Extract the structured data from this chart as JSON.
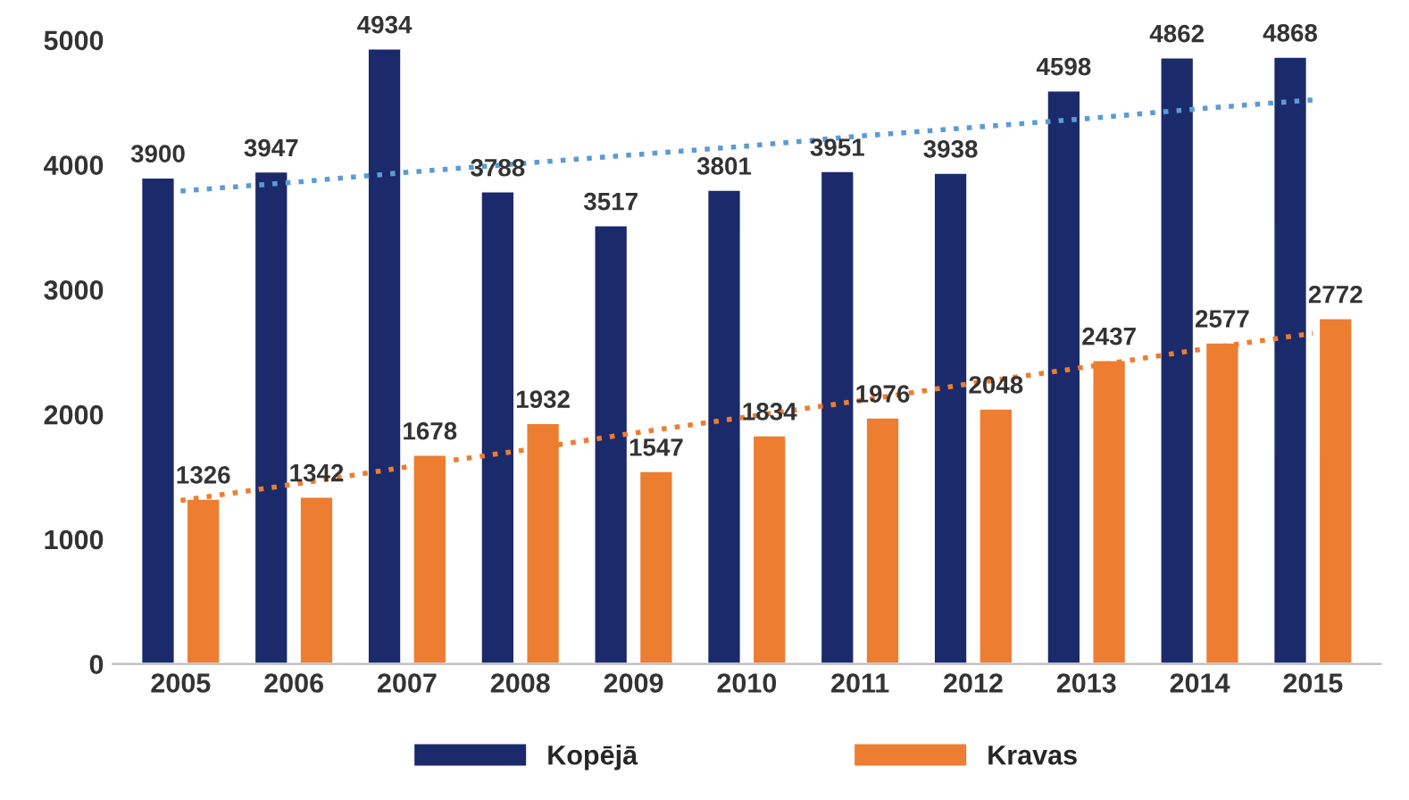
{
  "chart_data": {
    "type": "bar",
    "categories": [
      "2005",
      "2006",
      "2007",
      "2008",
      "2009",
      "2010",
      "2011",
      "2012",
      "2013",
      "2014",
      "2015"
    ],
    "series": [
      {
        "name": "Kopējā",
        "color": "#1b2a6b",
        "values": [
          3900,
          3947,
          4934,
          3788,
          3517,
          3801,
          3951,
          3938,
          4598,
          4862,
          4868
        ],
        "value_labels": [
          "3900",
          "3947",
          "4934",
          "3788",
          "3517",
          "3801",
          "3951",
          "3938",
          "4598",
          "4862",
          "4868"
        ]
      },
      {
        "name": "Kravas",
        "color": "#ed7d31",
        "values": [
          1326,
          1342,
          1678,
          1932,
          1547,
          1834,
          1976,
          2048,
          2437,
          2577,
          2772
        ],
        "value_labels": [
          "1326",
          "1342",
          "1678",
          "1932",
          "1547",
          "1834",
          "1976",
          "2048",
          "2437",
          "2577",
          "2772"
        ]
      },
      {
        "type": "line",
        "color": "#5b9bd5",
        "line_style": "dotted",
        "values": [
          3790,
          3860,
          3940,
          4010,
          4080,
          4150,
          4230,
          4300,
          4370,
          4450,
          4520
        ]
      },
      {
        "type": "line",
        "color": "#ed7d31",
        "line_style": "dotted",
        "values": [
          1310,
          1440,
          1580,
          1710,
          1850,
          1980,
          2110,
          2250,
          2380,
          2520,
          2650
        ]
      }
    ],
    "ylim": [
      0,
      5000
    ],
    "yticks": [
      0,
      1000,
      2000,
      3000,
      4000,
      5000
    ],
    "grid": false,
    "legend": "bottom"
  }
}
